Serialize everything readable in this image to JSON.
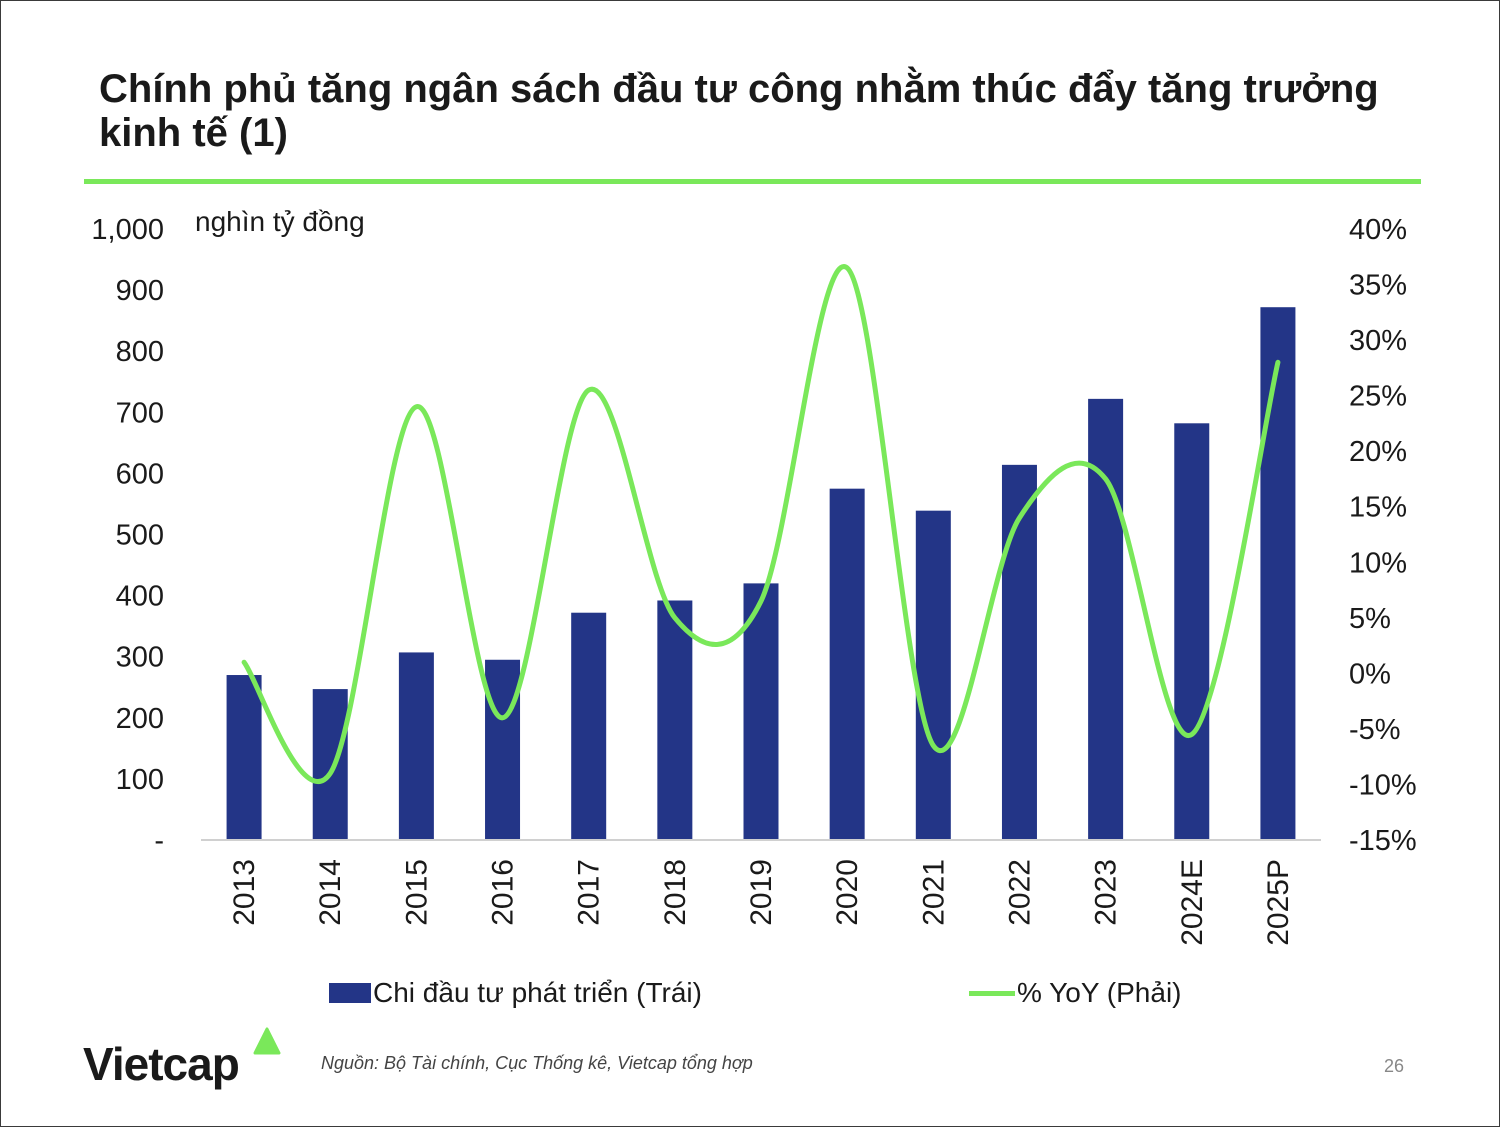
{
  "slide": {
    "title": "Chính phủ tăng ngân sách đầu tư công nhằm thúc đẩy tăng trưởng kinh tế (1)",
    "source": "Nguồn: Bộ Tài chính, Cục Thống kê, Vietcap tổng hợp",
    "page_number": "26",
    "logo_text": "Vietcap",
    "accent_color": "#7ae85a",
    "bar_color": "#233587"
  },
  "chart_data": {
    "type": "bar",
    "title": "",
    "unit_label": "nghìn tỷ đồng",
    "categories": [
      "2013",
      "2014",
      "2015",
      "2016",
      "2017",
      "2018",
      "2019",
      "2020",
      "2021",
      "2022",
      "2023",
      "2024E",
      "2025P"
    ],
    "series": [
      {
        "name": "Chi đầu tư phát triển (Trái)",
        "type": "bar",
        "axis": "left",
        "color": "#233587",
        "values": [
          270,
          247,
          307,
          295,
          372,
          392,
          420,
          575,
          539,
          614,
          722,
          682,
          872
        ]
      },
      {
        "name": "% YoY (Phải)",
        "type": "line",
        "axis": "right",
        "smooth": true,
        "color": "#7ae85a",
        "values": [
          1.0,
          -9.0,
          24.0,
          -4.0,
          25.5,
          5.0,
          6.5,
          36.5,
          -6.5,
          14.0,
          17.5,
          -5.5,
          28.0
        ]
      }
    ],
    "y_left": {
      "range": [
        0,
        1000
      ],
      "ticks": [
        0,
        100,
        200,
        300,
        400,
        500,
        600,
        700,
        800,
        900,
        1000
      ],
      "tick_labels": [
        "-",
        "100",
        "200",
        "300",
        "400",
        "500",
        "600",
        "700",
        "800",
        "900",
        "1,000"
      ]
    },
    "y_right": {
      "range": [
        -15,
        40
      ],
      "ticks": [
        -15,
        -10,
        -5,
        0,
        5,
        10,
        15,
        20,
        25,
        30,
        35,
        40
      ],
      "tick_labels": [
        "-15%",
        "-10%",
        "-5%",
        "0%",
        "5%",
        "10%",
        "15%",
        "20%",
        "25%",
        "30%",
        "35%",
        "40%"
      ]
    },
    "grid": false,
    "legend": "bottom"
  }
}
